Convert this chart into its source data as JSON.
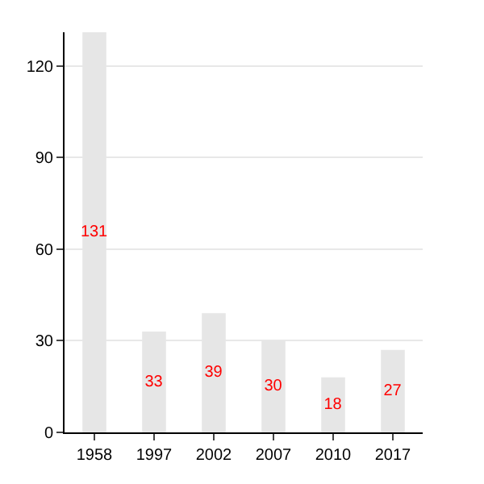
{
  "chart_data": {
    "type": "bar",
    "categories": [
      "1958",
      "1997",
      "2002",
      "2007",
      "2010",
      "2017"
    ],
    "values": [
      131,
      33,
      39,
      30,
      18,
      27
    ],
    "color": "#e6e6e6",
    "ylim": [
      0,
      131
    ],
    "yticks": [
      0,
      30,
      60,
      90,
      120
    ],
    "grid": "y",
    "data_labels": true
  }
}
